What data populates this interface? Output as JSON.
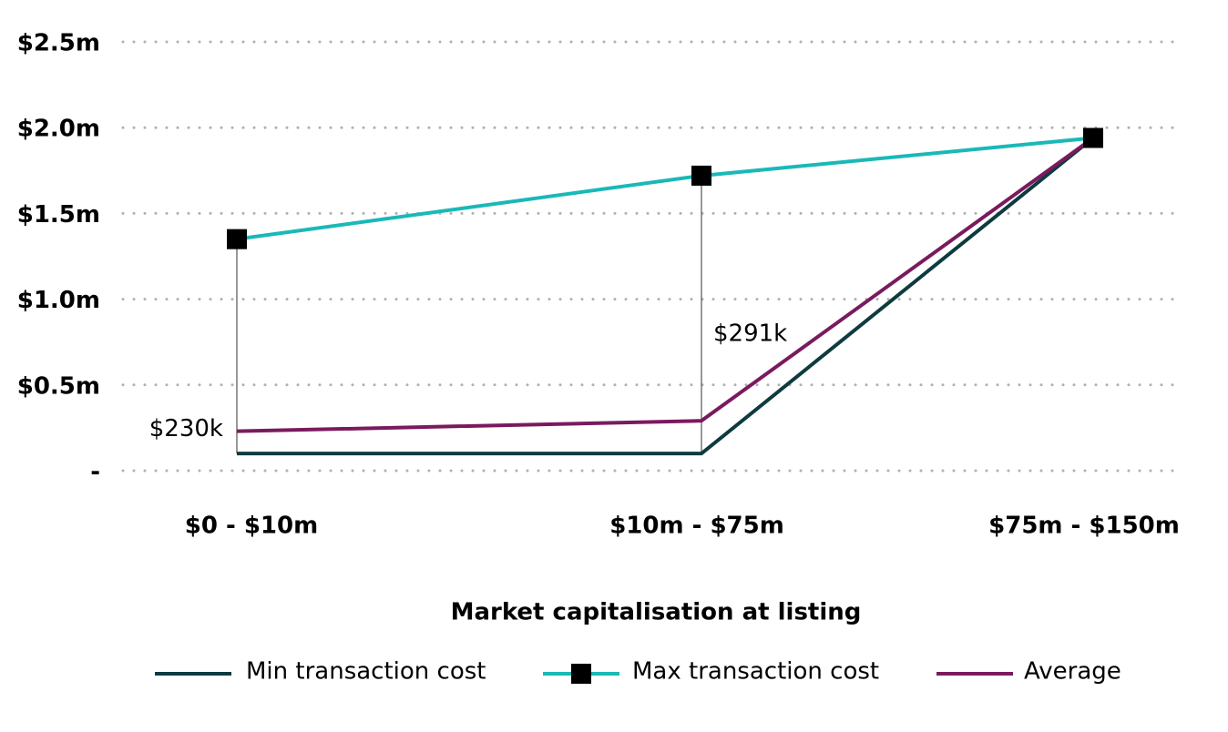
{
  "chart_data": {
    "type": "line",
    "x_label": "Market capitalisation at listing",
    "categories": [
      "$0 - $10m",
      "$10m - $75m",
      "$75m - $150m"
    ],
    "series": [
      {
        "name": "Min transaction cost",
        "color": "#0d3b3f",
        "values": [
          0.1,
          0.1,
          1.94
        ]
      },
      {
        "name": "Max transaction cost",
        "color": "#1ab8b8",
        "marker": "square",
        "values": [
          1.35,
          1.72,
          1.94
        ]
      },
      {
        "name": "Average",
        "color": "#7a1a5e",
        "values": [
          0.23,
          0.291,
          1.94
        ],
        "value_labels": [
          "$230k",
          "$291k",
          null
        ]
      }
    ],
    "ylim": [
      0,
      2.5
    ],
    "yticks": [
      {
        "value": 0,
        "label": "-"
      },
      {
        "value": 0.5,
        "label": "$0.5m"
      },
      {
        "value": 1.0,
        "label": "$1.0m"
      },
      {
        "value": 1.5,
        "label": "$1.5m"
      },
      {
        "value": 2.0,
        "label": "$2.0m"
      },
      {
        "value": 2.5,
        "label": "$2.5m"
      }
    ],
    "grid": true,
    "legend": "bottom"
  }
}
